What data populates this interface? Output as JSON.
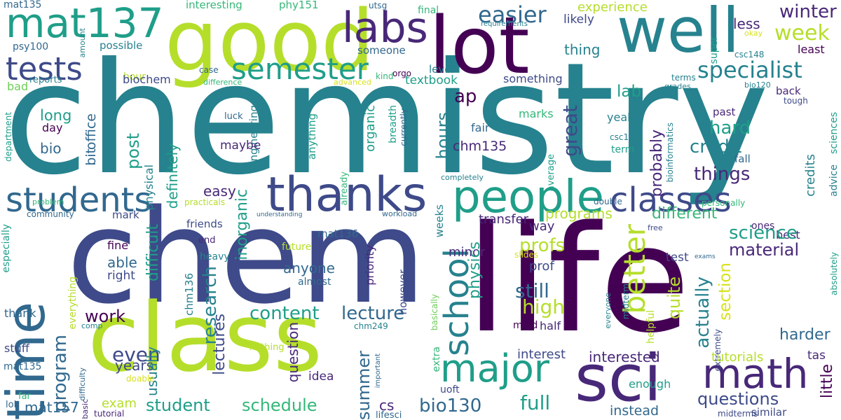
{
  "words": [
    {
      "id": "chemistry",
      "text": "chemistry"
    },
    {
      "id": "life",
      "text": "life"
    },
    {
      "id": "chem",
      "text": "chem"
    },
    {
      "id": "class",
      "text": "class"
    },
    {
      "id": "good",
      "text": "good"
    },
    {
      "id": "lot",
      "text": "lot"
    },
    {
      "id": "well",
      "text": "well"
    },
    {
      "id": "time",
      "text": "time"
    },
    {
      "id": "sci",
      "text": "sci"
    },
    {
      "id": "mat137",
      "text": "mat137"
    },
    {
      "id": "thanks",
      "text": "thanks"
    },
    {
      "id": "people",
      "text": "people"
    },
    {
      "id": "labs",
      "text": "labs"
    },
    {
      "id": "students",
      "text": "students"
    },
    {
      "id": "tests",
      "text": "tests"
    },
    {
      "id": "math",
      "text": "math"
    },
    {
      "id": "major",
      "text": "major"
    },
    {
      "id": "classes",
      "text": "classes"
    },
    {
      "id": "semester",
      "text": "semester"
    },
    {
      "id": "school",
      "text": "school"
    },
    {
      "id": "better",
      "text": "better"
    },
    {
      "id": "specialist",
      "text": "specialist"
    },
    {
      "id": "easier",
      "text": "easier"
    },
    {
      "id": "week",
      "text": "week"
    },
    {
      "id": "winter",
      "text": "winter"
    },
    {
      "id": "mat135_top",
      "text": "mat135"
    },
    {
      "id": "psy100",
      "text": "psy100"
    },
    {
      "id": "interesting",
      "text": "interesting"
    },
    {
      "id": "phy151",
      "text": "phy151"
    },
    {
      "id": "utsg",
      "text": "utsg"
    },
    {
      "id": "final",
      "text": "final"
    },
    {
      "id": "experience",
      "text": "experience"
    },
    {
      "id": "requirements",
      "text": "requirements"
    },
    {
      "id": "likely",
      "text": "likely"
    },
    {
      "id": "less",
      "text": "less"
    },
    {
      "id": "okay",
      "text": "okay"
    },
    {
      "id": "csc148",
      "text": "csc148"
    },
    {
      "id": "least",
      "text": "least"
    },
    {
      "id": "super",
      "text": "super"
    },
    {
      "id": "thing",
      "text": "thing"
    },
    {
      "id": "someone",
      "text": "someone"
    },
    {
      "id": "level",
      "text": "level"
    },
    {
      "id": "amount",
      "text": "amount"
    },
    {
      "id": "possible",
      "text": "possible"
    },
    {
      "id": "hour",
      "text": "hour"
    },
    {
      "id": "bad",
      "text": "bad"
    },
    {
      "id": "case",
      "text": "case"
    },
    {
      "id": "orgo",
      "text": "orgo"
    },
    {
      "id": "kind",
      "text": "kind"
    },
    {
      "id": "textbook",
      "text": "textbook"
    },
    {
      "id": "something",
      "text": "something"
    },
    {
      "id": "grades",
      "text": "grades"
    },
    {
      "id": "terms",
      "text": "terms"
    },
    {
      "id": "bio120",
      "text": "bio120"
    },
    {
      "id": "back",
      "text": "back"
    },
    {
      "id": "tough",
      "text": "tough"
    },
    {
      "id": "reports",
      "text": "reports"
    },
    {
      "id": "difference",
      "text": "difference"
    },
    {
      "id": "advanced",
      "text": "advanced"
    },
    {
      "id": "biochem",
      "text": "biochem"
    },
    {
      "id": "lab",
      "text": "lab"
    },
    {
      "id": "ap",
      "text": "ap"
    },
    {
      "id": "office",
      "text": "office"
    },
    {
      "id": "bit",
      "text": "bit"
    },
    {
      "id": "long",
      "text": "long"
    },
    {
      "id": "day",
      "text": "day"
    },
    {
      "id": "bio",
      "text": "bio"
    },
    {
      "id": "post",
      "text": "post"
    },
    {
      "id": "definitely",
      "text": "definitely"
    },
    {
      "id": "luck",
      "text": "luck"
    },
    {
      "id": "engineering",
      "text": "engineering"
    },
    {
      "id": "maybe",
      "text": "maybe"
    },
    {
      "id": "anything",
      "text": "anything"
    },
    {
      "id": "breadth",
      "text": "breadth"
    },
    {
      "id": "currently",
      "text": "currently"
    },
    {
      "id": "organic",
      "text": "organic"
    },
    {
      "id": "hours",
      "text": "hours"
    },
    {
      "id": "chm135",
      "text": "chm135"
    },
    {
      "id": "fair",
      "text": "fair"
    },
    {
      "id": "marks",
      "text": "marks"
    },
    {
      "id": "great",
      "text": "great"
    },
    {
      "id": "yeah",
      "text": "yeah"
    },
    {
      "id": "probably",
      "text": "probably"
    },
    {
      "id": "csc108",
      "text": "csc108"
    },
    {
      "id": "bioinformatics",
      "text": "bioinformatics"
    },
    {
      "id": "term",
      "text": "term"
    },
    {
      "id": "hard",
      "text": "hard"
    },
    {
      "id": "past",
      "text": "past"
    },
    {
      "id": "credit",
      "text": "credit"
    },
    {
      "id": "fall",
      "text": "fall"
    },
    {
      "id": "sciences",
      "text": "sciences"
    },
    {
      "id": "advice",
      "text": "advice"
    },
    {
      "id": "credits",
      "text": "credits"
    },
    {
      "id": "things",
      "text": "things"
    },
    {
      "id": "easy",
      "text": "easy"
    },
    {
      "id": "average",
      "text": "average"
    },
    {
      "id": "double",
      "text": "double"
    },
    {
      "id": "personally",
      "text": "personally"
    },
    {
      "id": "ones",
      "text": "ones"
    },
    {
      "id": "department",
      "text": "department"
    },
    {
      "id": "problem",
      "text": "problem"
    },
    {
      "id": "practicals",
      "text": "practicals"
    },
    {
      "id": "physical",
      "text": "physical"
    },
    {
      "id": "completely",
      "text": "completely"
    },
    {
      "id": "friends",
      "text": "friends"
    },
    {
      "id": "already",
      "text": "already"
    },
    {
      "id": "mark",
      "text": "mark"
    },
    {
      "id": "programs",
      "text": "programs"
    },
    {
      "id": "different",
      "text": "different"
    },
    {
      "id": "best",
      "text": "best"
    },
    {
      "id": "community",
      "text": "community"
    },
    {
      "id": "understanding",
      "text": "understanding"
    },
    {
      "id": "mat136",
      "text": "mat136"
    },
    {
      "id": "workload",
      "text": "workload"
    },
    {
      "id": "weeks",
      "text": "weeks"
    },
    {
      "id": "transfer",
      "text": "transfer"
    },
    {
      "id": "way",
      "text": "way"
    },
    {
      "id": "free",
      "text": "free"
    },
    {
      "id": "especially",
      "text": "especially"
    },
    {
      "id": "fine",
      "text": "fine"
    },
    {
      "id": "able",
      "text": "able"
    },
    {
      "id": "right",
      "text": "right"
    },
    {
      "id": "end",
      "text": "end"
    },
    {
      "id": "heavy",
      "text": "heavy"
    },
    {
      "id": "chm136",
      "text": "chm136"
    },
    {
      "id": "difficult",
      "text": "difficult"
    },
    {
      "id": "inorganic",
      "text": "inorganic"
    },
    {
      "id": "research",
      "text": "research"
    },
    {
      "id": "future",
      "text": "future"
    },
    {
      "id": "priority",
      "text": "priority"
    },
    {
      "id": "minor",
      "text": "minor"
    },
    {
      "id": "profs",
      "text": "profs"
    },
    {
      "id": "prof",
      "text": "prof"
    },
    {
      "id": "slides",
      "text": "slides"
    },
    {
      "id": "test",
      "text": "test"
    },
    {
      "id": "exams",
      "text": "exams"
    },
    {
      "id": "science",
      "text": "science"
    },
    {
      "id": "material",
      "text": "material"
    },
    {
      "id": "absolutely",
      "text": "absolutely"
    },
    {
      "id": "everything",
      "text": "everything"
    },
    {
      "id": "anyone",
      "text": "anyone"
    },
    {
      "id": "almost",
      "text": "almost"
    },
    {
      "id": "however",
      "text": "however"
    },
    {
      "id": "physics",
      "text": "physics"
    },
    {
      "id": "basically",
      "text": "basically"
    },
    {
      "id": "everyone",
      "text": "everyone"
    },
    {
      "id": "midterm",
      "text": "midterm"
    },
    {
      "id": "still",
      "text": "still"
    },
    {
      "id": "quite",
      "text": "quite"
    },
    {
      "id": "section",
      "text": "section"
    },
    {
      "id": "actually",
      "text": "actually"
    },
    {
      "id": "content",
      "text": "content"
    },
    {
      "id": "lecture",
      "text": "lecture"
    },
    {
      "id": "high",
      "text": "high"
    },
    {
      "id": "helpful",
      "text": "helpful"
    },
    {
      "id": "thank",
      "text": "thank"
    },
    {
      "id": "work",
      "text": "work"
    },
    {
      "id": "comp",
      "text": "comp"
    },
    {
      "id": "stuff",
      "text": "stuff"
    },
    {
      "id": "program",
      "text": "program"
    },
    {
      "id": "even",
      "text": "even"
    },
    {
      "id": "years",
      "text": "years"
    },
    {
      "id": "usually",
      "text": "usually"
    },
    {
      "id": "lectures",
      "text": "lectures"
    },
    {
      "id": "question",
      "text": "question"
    },
    {
      "id": "chm249",
      "text": "chm249"
    },
    {
      "id": "nothing",
      "text": "nothing"
    },
    {
      "id": "mind",
      "text": "mind"
    },
    {
      "id": "half",
      "text": "half"
    },
    {
      "id": "extra",
      "text": "extra"
    },
    {
      "id": "important",
      "text": "important"
    },
    {
      "id": "extremely",
      "text": "extremely"
    },
    {
      "id": "interest",
      "text": "interest"
    },
    {
      "id": "interested",
      "text": "interested"
    },
    {
      "id": "tutorials",
      "text": "tutorials"
    },
    {
      "id": "tas",
      "text": "tas"
    },
    {
      "id": "harder",
      "text": "harder"
    },
    {
      "id": "little",
      "text": "little"
    },
    {
      "id": "mat135_bottom",
      "text": "mat135"
    },
    {
      "id": "difficulty",
      "text": "difficulty"
    },
    {
      "id": "basic",
      "text": "basic"
    },
    {
      "id": "doable",
      "text": "doable"
    },
    {
      "id": "idea",
      "text": "idea"
    },
    {
      "id": "summer",
      "text": "summer"
    },
    {
      "id": "enough",
      "text": "enough"
    },
    {
      "id": "questions",
      "text": "questions"
    },
    {
      "id": "lol",
      "text": "lol"
    },
    {
      "id": "far",
      "text": "far"
    },
    {
      "id": "mat157",
      "text": "mat157"
    },
    {
      "id": "exam",
      "text": "exam"
    },
    {
      "id": "student",
      "text": "student"
    },
    {
      "id": "schedule",
      "text": "schedule"
    },
    {
      "id": "cs",
      "text": "cs"
    },
    {
      "id": "bio130",
      "text": "bio130"
    },
    {
      "id": "full",
      "text": "full"
    },
    {
      "id": "uoft",
      "text": "uoft"
    },
    {
      "id": "tutorial",
      "text": "tutorial"
    },
    {
      "id": "lifesci",
      "text": "lifesci"
    },
    {
      "id": "instead",
      "text": "instead"
    },
    {
      "id": "midterms",
      "text": "midterms"
    },
    {
      "id": "similar",
      "text": "similar"
    }
  ]
}
